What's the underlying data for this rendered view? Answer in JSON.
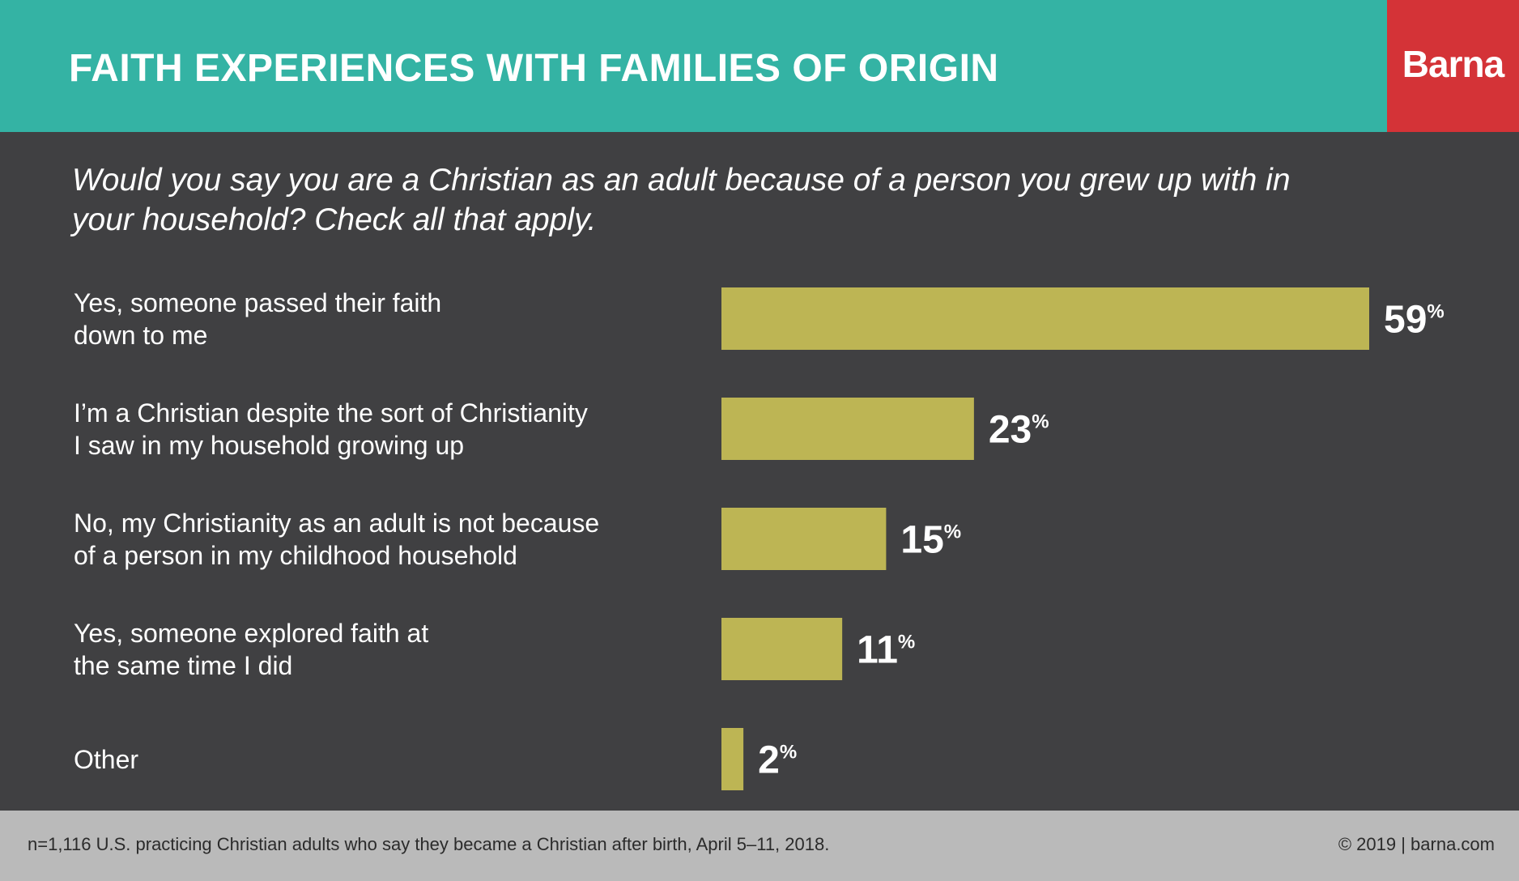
{
  "header": {
    "title": "FAITH EXPERIENCES WITH FAMILIES OF ORIGIN",
    "logo": "Barna"
  },
  "colors": {
    "header_bg": "#34b3a4",
    "logo_bg": "#d43337",
    "body_bg": "#404042",
    "bar": "#bdb554",
    "footer_bg": "#bababa"
  },
  "chart_data": {
    "type": "bar",
    "orientation": "horizontal",
    "subtitle": "Would you say you are a Christian as an adult because of a person you grew up with in your household? Check all that apply.",
    "categories": [
      [
        "Yes, someone passed their faith",
        "down to me"
      ],
      [
        "I’m a Christian despite the sort of Christianity",
        "I saw in my household growing up"
      ],
      [
        "No, my Christianity as an adult is not because",
        "of a person in my childhood household"
      ],
      [
        "Yes, someone explored faith at",
        "the same time I did"
      ],
      [
        "Other"
      ]
    ],
    "values": [
      59,
      23,
      15,
      11,
      2
    ],
    "value_suffix": "%",
    "xlim": [
      0,
      59
    ],
    "grid": false
  },
  "footer": {
    "note": "n=1,116 U.S. practicing Christian adults who say they became a Christian after birth, April 5–11, 2018.",
    "copyright": "© 2019 | barna.com"
  }
}
